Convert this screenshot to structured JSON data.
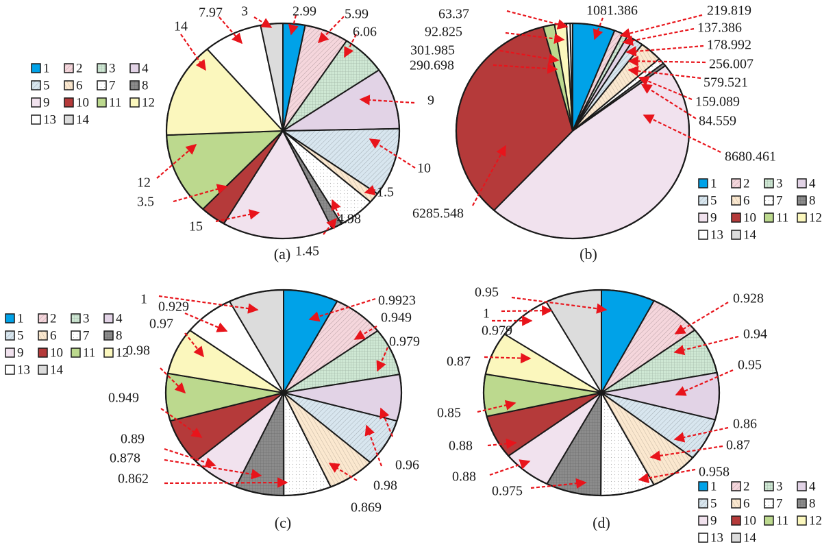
{
  "legend_labels": [
    "1",
    "2",
    "3",
    "4",
    "5",
    "6",
    "7",
    "8",
    "9",
    "10",
    "11",
    "12",
    "13",
    "14"
  ],
  "slice_colors": [
    "#00a2e8",
    "#f5d6dc",
    "#cfe8d4",
    "#e2d3e6",
    "#d8e6ef",
    "#fbe8cf",
    "#ffffff",
    "#8c8c8c",
    "#f1e2ee",
    "#b53a3a",
    "#bcd98e",
    "#fbf7bd",
    "#ffffff",
    "#dcdcdc"
  ],
  "slice_patterns": [
    "solid",
    "diag",
    "grid",
    "solid",
    "diag",
    "hatch",
    "dots",
    "grid",
    "solid",
    "solid",
    "solid",
    "solid",
    "solid",
    "solid"
  ],
  "annotation_color": "#e8141b",
  "chart_data": [
    {
      "type": "pie",
      "caption": "(a)",
      "categories": [
        "1",
        "2",
        "3",
        "4",
        "5",
        "6",
        "7",
        "8",
        "9",
        "10",
        "11",
        "12",
        "13",
        "14"
      ],
      "values": [
        2.99,
        5.99,
        6.06,
        9,
        10,
        1.5,
        4.98,
        1.45,
        15,
        3.5,
        12,
        14,
        7.97,
        3
      ],
      "data_labels": [
        "2.99",
        "5.99",
        "6.06",
        "9",
        "10",
        "1.5",
        "4.98",
        "1.45",
        "15",
        "3.5",
        "12",
        "14",
        "7.97",
        "3"
      ],
      "legend_position": "left"
    },
    {
      "type": "pie",
      "caption": "(b)",
      "categories": [
        "1",
        "2",
        "3",
        "4",
        "5",
        "6",
        "7",
        "8",
        "9",
        "10",
        "11",
        "12",
        "13",
        "14"
      ],
      "values": [
        1081.386,
        219.819,
        137.386,
        178.992,
        256.007,
        579.521,
        159.089,
        84.559,
        8680.461,
        6285.548,
        290.698,
        301.985,
        92.825,
        63.37
      ],
      "data_labels": [
        "1081.386",
        "219.819",
        "137.386",
        "178.992",
        "256.007",
        "579.521",
        "159.089",
        "84.559",
        "8680.461",
        "6285.548",
        "290.698",
        "301.985",
        "92.825",
        "63.37"
      ],
      "legend_position": "bottom-right"
    },
    {
      "type": "pie",
      "caption": "(c)",
      "categories": [
        "1",
        "2",
        "3",
        "4",
        "5",
        "6",
        "7",
        "8",
        "9",
        "10",
        "11",
        "12",
        "13",
        "14"
      ],
      "values": [
        0.9923,
        0.949,
        0.979,
        0.96,
        0.98,
        0.869,
        0.862,
        0.878,
        0.89,
        0.949,
        0.98,
        0.97,
        0.929,
        1
      ],
      "data_labels": [
        "0.9923",
        "0.949",
        "0.979",
        "0.96",
        "0.98",
        "0.869",
        "0.862",
        "0.878",
        "0.89",
        "0.949",
        "0.98",
        "0.97",
        "0.929",
        "1"
      ],
      "legend_position": "left"
    },
    {
      "type": "pie",
      "caption": "(d)",
      "categories": [
        "1",
        "2",
        "3",
        "4",
        "5",
        "6",
        "7",
        "8",
        "9",
        "10",
        "11",
        "12",
        "13",
        "14"
      ],
      "values": [
        0.95,
        0.928,
        0.94,
        0.95,
        0.86,
        0.87,
        0.958,
        0.975,
        0.88,
        0.88,
        0.85,
        0.87,
        0.979,
        1
      ],
      "data_labels": [
        "0.95",
        "0.928",
        "0.94",
        "0.95",
        "0.86",
        "0.87",
        "0.958",
        "0.975",
        "0.88",
        "0.88",
        "0.85",
        "0.87",
        "0.979",
        "1"
      ],
      "legend_position": "bottom-right"
    }
  ]
}
